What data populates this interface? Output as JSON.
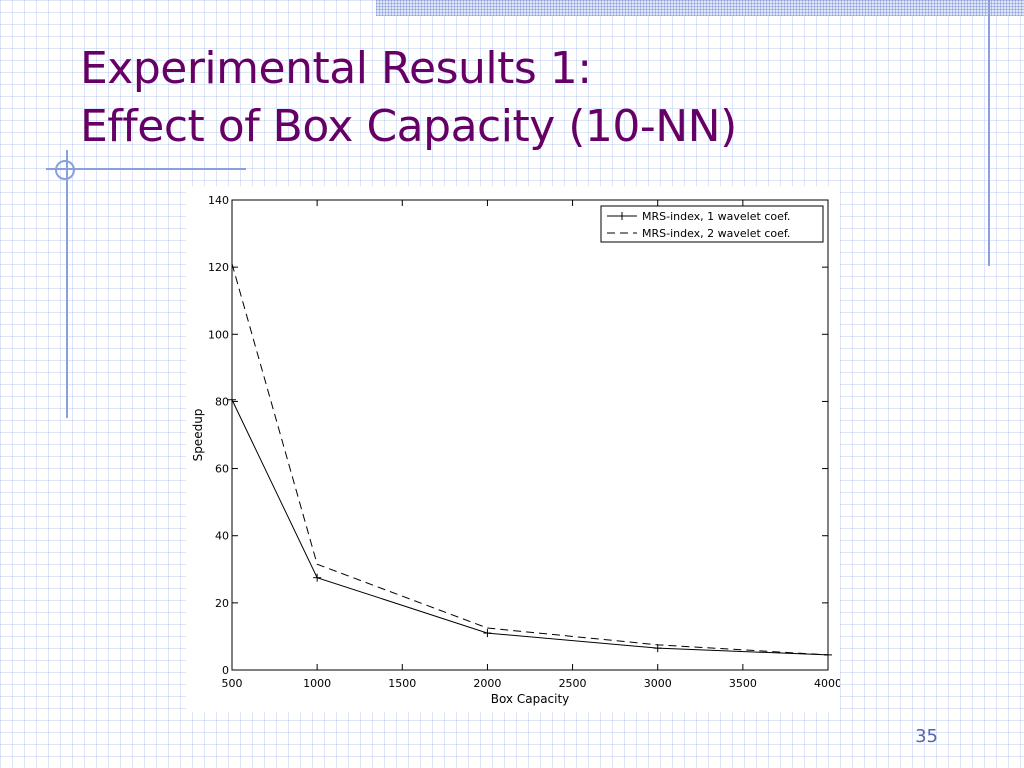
{
  "slide": {
    "title_line1": "Experimental Results 1:",
    "title_line2": "Effect of Box Capacity (10-NN)",
    "page_number": "35"
  },
  "colors": {
    "title": "#660066",
    "decor": "#8aa0dc",
    "line": "#000000"
  },
  "chart_data": {
    "type": "line",
    "title": "",
    "xlabel": "Box Capacity",
    "ylabel": "Speedup",
    "xlim": [
      500,
      4000
    ],
    "ylim": [
      0,
      140
    ],
    "xticks": [
      500,
      1000,
      1500,
      2000,
      2500,
      3000,
      3500,
      4000
    ],
    "yticks": [
      0,
      20,
      40,
      60,
      80,
      100,
      120,
      140
    ],
    "grid": false,
    "legend_position": "top-right",
    "series": [
      {
        "name": "MRS-index, 1 wavelet coef.",
        "style": "solid-plus-marker",
        "x": [
          500,
          1000,
          2000,
          3000,
          4000
        ],
        "y": [
          80.5,
          27.5,
          11,
          6.5,
          4.5
        ]
      },
      {
        "name": "MRS-index, 2 wavelet coef.",
        "style": "dashed",
        "x": [
          500,
          1000,
          2000,
          3000,
          4000
        ],
        "y": [
          121,
          31.5,
          12.5,
          7.5,
          4.5
        ]
      }
    ]
  }
}
